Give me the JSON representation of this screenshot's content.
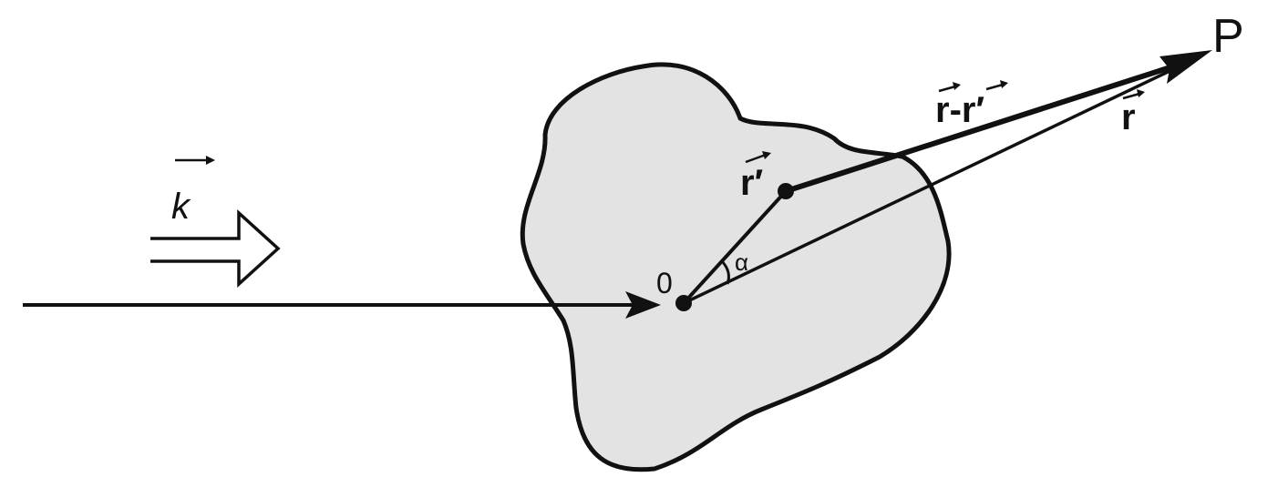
{
  "diagram": {
    "labels": {
      "wave_vector": "k",
      "origin": "0",
      "source_point": "r′",
      "difference_vector": "r-r′",
      "position_vector": "r",
      "observation_point": "P",
      "angle": "α"
    },
    "colors": {
      "body_fill": "#e3e3e3",
      "stroke": "#111111",
      "angle_label": "#444444"
    }
  }
}
